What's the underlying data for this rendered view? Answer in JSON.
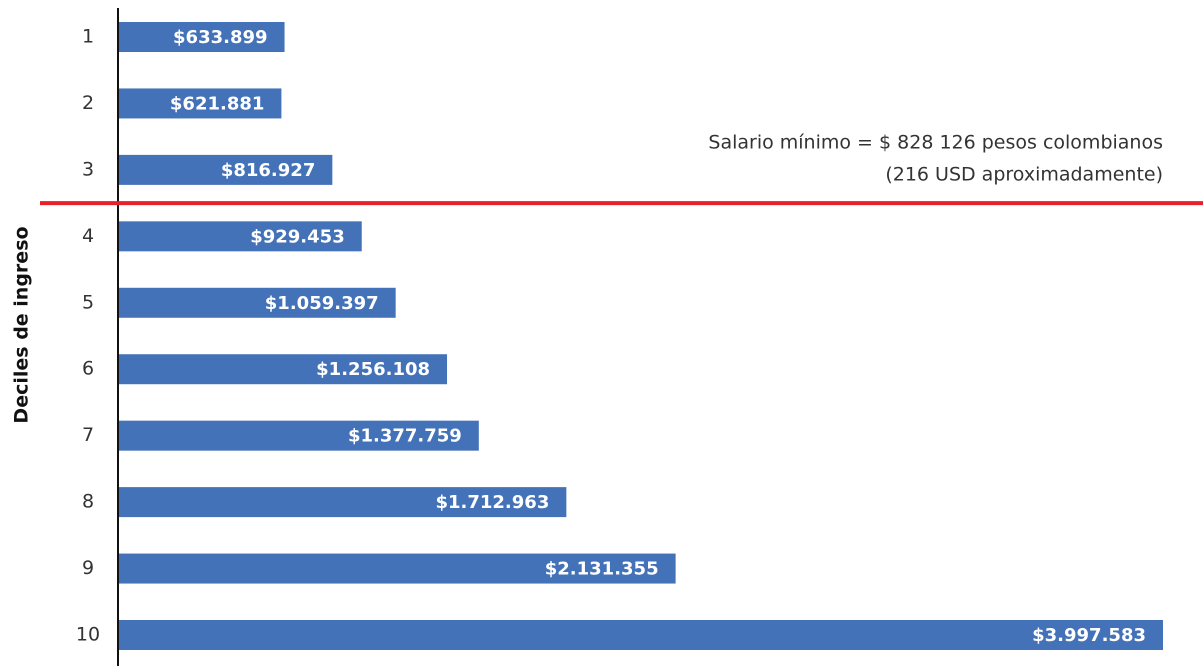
{
  "chart_data": {
    "type": "bar",
    "orientation": "horizontal",
    "y_label": "Deciles de ingreso",
    "categories": [
      "1",
      "2",
      "3",
      "4",
      "5",
      "6",
      "7",
      "8",
      "9",
      "10"
    ],
    "values": [
      633899,
      621881,
      816927,
      929453,
      1059397,
      1256108,
      1377759,
      1712963,
      2131355,
      3997583
    ],
    "value_labels": [
      "$633.899",
      "$621.881",
      "$816.927",
      "$929.453",
      "$1.059.397",
      "$1.256.108",
      "$1.377.759",
      "$1.712.963",
      "$2.131.355",
      "$3.997.583"
    ],
    "color": "#4472b8",
    "annotations": [
      "Salario mínimo = $ 828 126 pesos colombianos",
      "(216 USD aproximadamente)"
    ],
    "reference_line_color": "#e8202a"
  }
}
